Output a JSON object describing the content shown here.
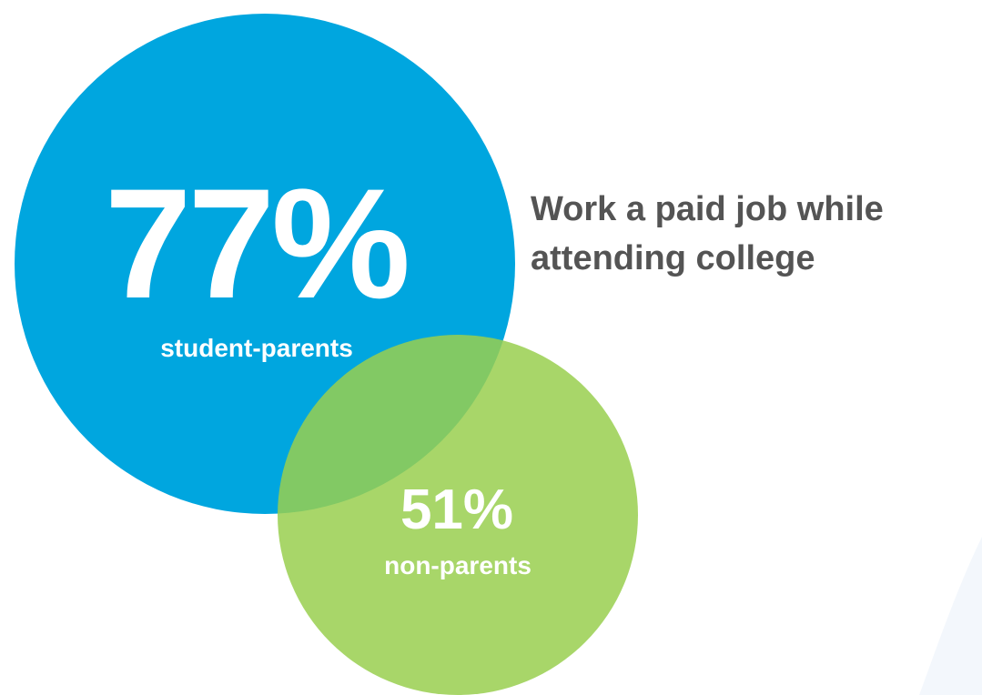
{
  "chart_data": {
    "type": "bubble",
    "title_lines": [
      "Work a paid job while",
      "attending college"
    ],
    "series": [
      {
        "name": "student-parents",
        "value": 77,
        "display": "77%"
      },
      {
        "name": "non-parents",
        "value": 51,
        "display": "51%"
      }
    ]
  },
  "colors": {
    "student_parents": "#00a6df",
    "non_parents": "#99cf4f",
    "headline": "#545454",
    "background_shape": "#f3f7fc"
  }
}
